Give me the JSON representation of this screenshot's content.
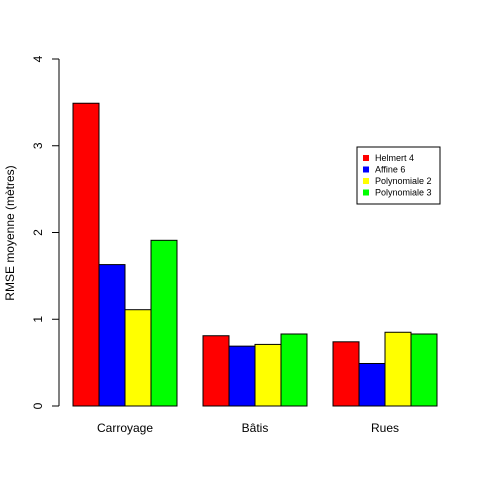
{
  "chart_data": {
    "type": "bar",
    "title": "",
    "xlabel": "",
    "ylabel": "RMSE moyenne (mètres)",
    "ylim": [
      0,
      4
    ],
    "yticks": [
      "0",
      "1",
      "2",
      "3",
      "4"
    ],
    "categories": [
      "Carroyage",
      "Bâtis",
      "Rues"
    ],
    "series": [
      {
        "name": "Helmert 4",
        "color": "#ff0000",
        "values": [
          3.49,
          0.81,
          0.74
        ]
      },
      {
        "name": "Affine 6",
        "color": "#0000ff",
        "values": [
          1.63,
          0.69,
          0.49
        ]
      },
      {
        "name": "Polynomiale 2",
        "color": "#ffff00",
        "values": [
          1.11,
          0.71,
          0.85
        ]
      },
      {
        "name": "Polynomiale 3",
        "color": "#00ff00",
        "values": [
          1.91,
          0.83,
          0.83
        ]
      }
    ],
    "grid": false,
    "legend_position": "right"
  }
}
